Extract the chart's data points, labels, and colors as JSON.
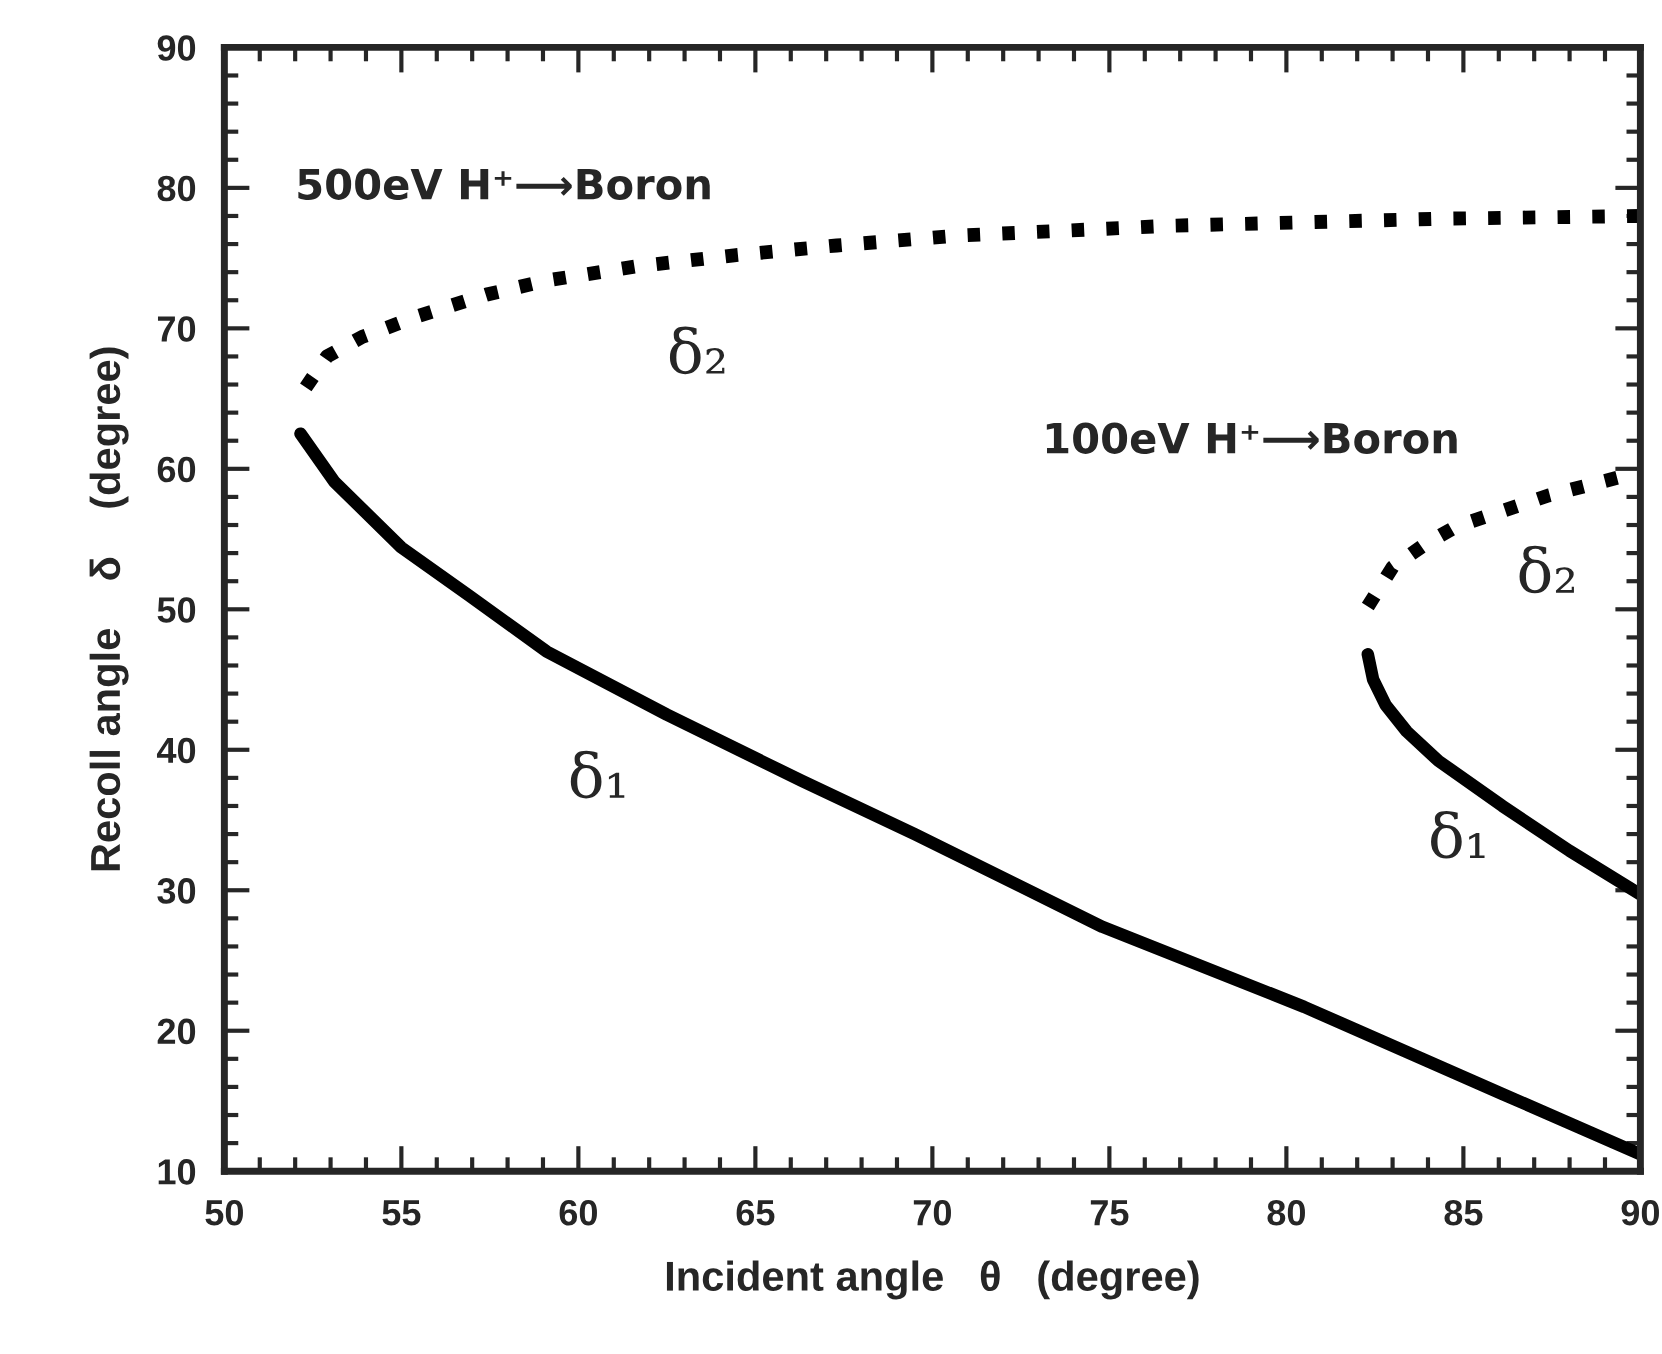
{
  "chart_data": {
    "type": "line",
    "xlabel": "Incident angle   θ   (degree)",
    "ylabel": "Recoll angle    δ    (degree)",
    "xlim": [
      50,
      90
    ],
    "ylim": [
      10,
      90
    ],
    "xticks": [
      50,
      {
        "value": 51,
        "label": null
      },
      {
        "value": 52,
        "label": null
      },
      {
        "value": 53,
        "label": null
      },
      {
        "value": 54,
        "label": null
      },
      55,
      {
        "value": 56,
        "label": null
      },
      {
        "value": 57,
        "label": null
      },
      {
        "value": 58,
        "label": null
      },
      {
        "value": 59,
        "label": null
      },
      60,
      {
        "value": 61,
        "label": null
      },
      {
        "value": 62,
        "label": null
      },
      {
        "value": 63,
        "label": null
      },
      {
        "value": 64,
        "label": null
      },
      65,
      {
        "value": 66,
        "label": null
      },
      {
        "value": 67,
        "label": null
      },
      {
        "value": 68,
        "label": null
      },
      {
        "value": 69,
        "label": null
      },
      70,
      {
        "value": 71,
        "label": null
      },
      {
        "value": 72,
        "label": null
      },
      {
        "value": 73,
        "label": null
      },
      {
        "value": 74,
        "label": null
      },
      75,
      {
        "value": 76,
        "label": null
      },
      {
        "value": 77,
        "label": null
      },
      {
        "value": 78,
        "label": null
      },
      {
        "value": 79,
        "label": null
      },
      80,
      {
        "value": 81,
        "label": null
      },
      {
        "value": 82,
        "label": null
      },
      {
        "value": 83,
        "label": null
      },
      {
        "value": 84,
        "label": null
      },
      85,
      {
        "value": 86,
        "label": null
      },
      {
        "value": 87,
        "label": null
      },
      {
        "value": 88,
        "label": null
      },
      {
        "value": 89,
        "label": null
      },
      90
    ],
    "yticks": [
      10,
      {
        "value": 12,
        "label": null
      },
      {
        "value": 14,
        "label": null
      },
      {
        "value": 16,
        "label": null
      },
      {
        "value": 18,
        "label": null
      },
      20,
      {
        "value": 22,
        "label": null
      },
      {
        "value": 24,
        "label": null
      },
      {
        "value": 26,
        "label": null
      },
      {
        "value": 28,
        "label": null
      },
      30,
      {
        "value": 32,
        "label": null
      },
      {
        "value": 34,
        "label": null
      },
      {
        "value": 36,
        "label": null
      },
      {
        "value": 38,
        "label": null
      },
      40,
      {
        "value": 42,
        "label": null
      },
      {
        "value": 44,
        "label": null
      },
      {
        "value": 46,
        "label": null
      },
      {
        "value": 48,
        "label": null
      },
      50,
      {
        "value": 52,
        "label": null
      },
      {
        "value": 54,
        "label": null
      },
      {
        "value": 56,
        "label": null
      },
      {
        "value": 58,
        "label": null
      },
      60,
      {
        "value": 62,
        "label": null
      },
      {
        "value": 64,
        "label": null
      },
      {
        "value": 66,
        "label": null
      },
      {
        "value": 68,
        "label": null
      },
      70,
      {
        "value": 72,
        "label": null
      },
      {
        "value": 74,
        "label": null
      },
      {
        "value": 76,
        "label": null
      },
      {
        "value": 78,
        "label": null
      },
      80,
      {
        "value": 82,
        "label": null
      },
      {
        "value": 84,
        "label": null
      },
      {
        "value": 86,
        "label": null
      },
      {
        "value": 88,
        "label": null
      },
      90
    ],
    "grid": false,
    "legend": false,
    "marker": "none",
    "series": [
      {
        "color": "#000000",
        "line_style": "solid",
        "x": [
          52.15,
          53.1,
          55.0,
          56.9,
          59.1,
          62.5,
          66.3,
          69.5,
          74.8,
          80.5,
          86.1,
          90.0
        ],
        "values": [
          62.5,
          59.1,
          54.4,
          51.0,
          47.0,
          42.5,
          37.8,
          34.0,
          27.4,
          21.7,
          15.5,
          11.2
        ]
      },
      {
        "color": "#000000",
        "line_style": "dotted",
        "x": [
          52.3,
          52.9,
          53.9,
          55.5,
          57.4,
          59.1,
          61.6,
          64.4,
          67.3,
          70.7,
          76.7,
          84.3,
          90.0
        ],
        "values": [
          65.8,
          68.0,
          69.4,
          70.9,
          72.4,
          73.4,
          74.4,
          75.2,
          75.9,
          76.6,
          77.3,
          77.8,
          78.0
        ]
      },
      {
        "color": "#000000",
        "line_style": "solid",
        "x": [
          82.3,
          82.45,
          82.8,
          83.4,
          84.3,
          86.1,
          88.0,
          90.0
        ],
        "values": [
          46.8,
          45.0,
          43.2,
          41.3,
          39.2,
          36.0,
          32.8,
          29.7
        ]
      },
      {
        "color": "#000000",
        "line_style": "dotted",
        "x": [
          82.3,
          83.0,
          83.9,
          84.8,
          86.1,
          87.4,
          89.4,
          90.0
        ],
        "values": [
          50.2,
          53.0,
          54.6,
          55.9,
          57.0,
          58.1,
          59.4,
          59.6
        ]
      }
    ],
    "annotations": [
      "500eV H⁺⟶Boron",
      "δ₂",
      "δ₁",
      "100eV H⁺⟶Boron",
      "δ₂",
      "δ₁"
    ]
  }
}
